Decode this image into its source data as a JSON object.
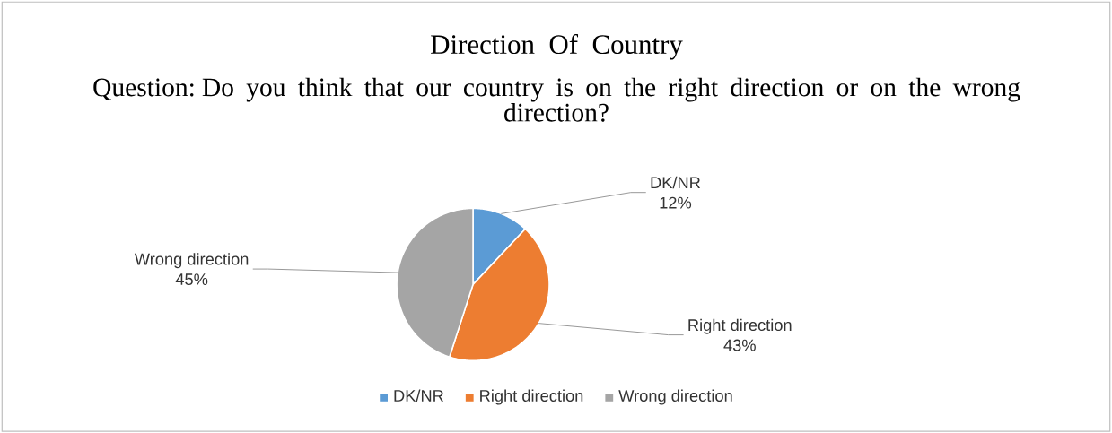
{
  "chart_data": {
    "type": "pie",
    "title": "Direction Of Country",
    "subtitle": "Question: Do you think that our country is on the right direction or on the wrong direction?",
    "categories": [
      "DK/NR",
      "Right direction",
      "Wrong direction"
    ],
    "values": [
      12,
      43,
      45
    ],
    "colors": [
      "#5b9bd5",
      "#ed7d31",
      "#a5a5a5"
    ],
    "value_labels": [
      "12%",
      "43%",
      "45%"
    ],
    "legend": "bottom"
  }
}
